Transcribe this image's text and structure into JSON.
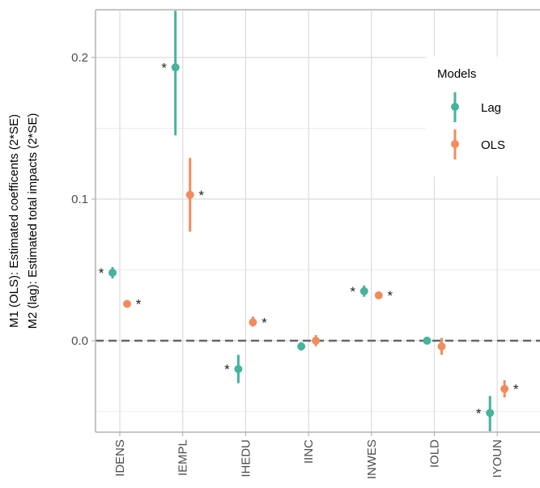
{
  "chart_data": {
    "type": "scatter",
    "subtype": "point-range (estimate with ±2*SE interval)",
    "ylabel_lines": [
      "M1 (OLS): Estimated coefficents (2*SE)",
      "M2 (lag): Estimated total impacts (2*SE)"
    ],
    "xlabel": "",
    "categories": [
      "IDENS",
      "IEMPL",
      "IHEDU",
      "IINC",
      "INWES",
      "IOLD",
      "IYOUN"
    ],
    "ylim": [
      -0.065,
      0.233
    ],
    "y_ticks": [
      {
        "value": 0.0,
        "label": "0.0"
      },
      {
        "value": 0.1,
        "label": "0.1"
      },
      {
        "value": 0.2,
        "label": "0.2"
      }
    ],
    "reference_line": {
      "value": 0.0,
      "style": "dashed",
      "color": "#666666"
    },
    "legend": {
      "title": "Models",
      "position": "top-right"
    },
    "grid": true,
    "significance_marker": "*",
    "series": [
      {
        "name": "Lag",
        "color": "#45B39D",
        "values": [
          0.048,
          0.193,
          -0.02,
          -0.004,
          0.035,
          0.0,
          -0.051
        ],
        "lower": [
          0.044,
          0.145,
          -0.03,
          -0.007,
          0.031,
          -0.002,
          -0.064
        ],
        "upper": [
          0.052,
          0.233,
          -0.01,
          -0.001,
          0.039,
          0.002,
          -0.039
        ],
        "significant": [
          true,
          true,
          true,
          false,
          true,
          false,
          true
        ]
      },
      {
        "name": "OLS",
        "color": "#F28C5C",
        "values": [
          0.026,
          0.103,
          0.013,
          0.0,
          0.032,
          -0.004,
          -0.034
        ],
        "lower": [
          0.024,
          0.077,
          0.01,
          -0.004,
          0.03,
          -0.01,
          -0.04
        ],
        "upper": [
          0.028,
          0.129,
          0.017,
          0.004,
          0.034,
          0.002,
          -0.028
        ],
        "significant": [
          true,
          true,
          true,
          false,
          true,
          false,
          true
        ]
      }
    ]
  }
}
